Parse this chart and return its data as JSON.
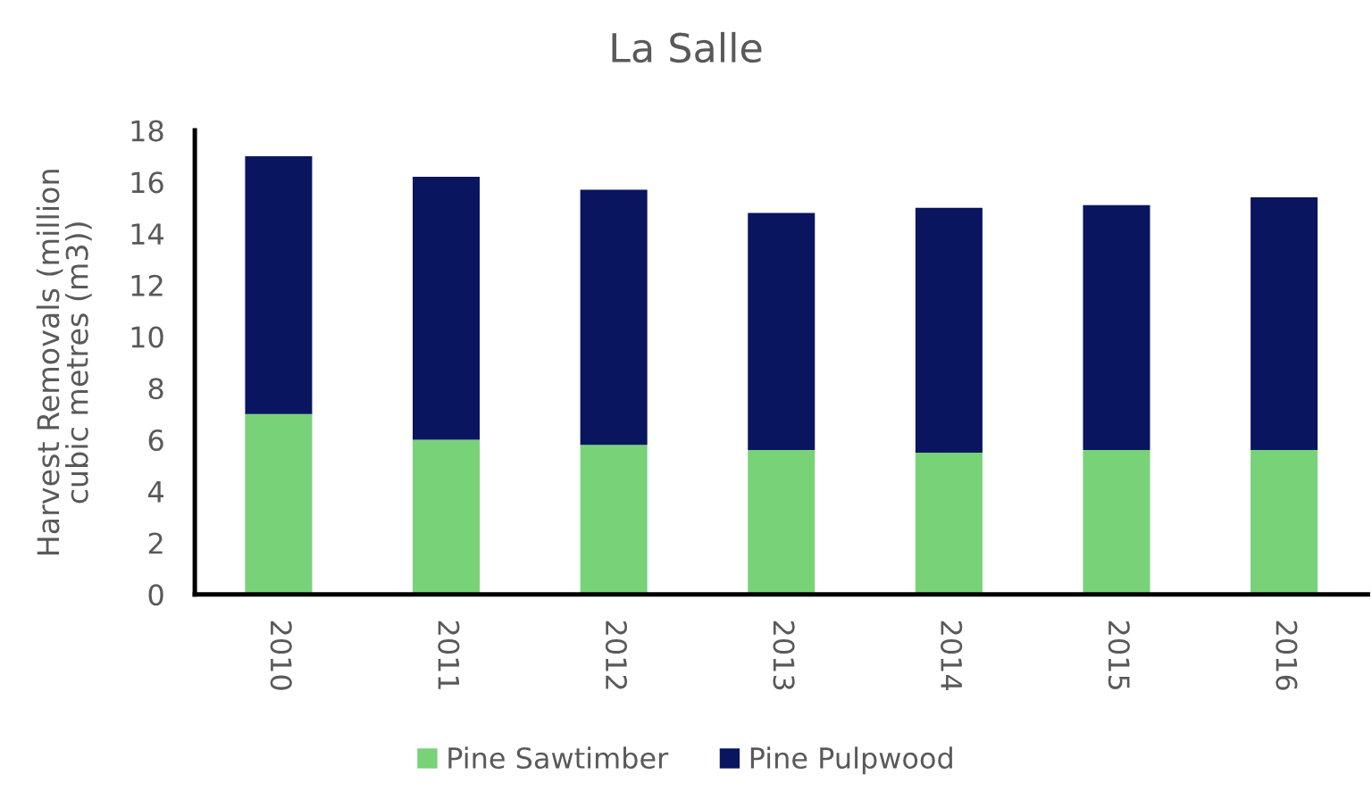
{
  "chart_data": {
    "type": "bar",
    "title": "La Salle",
    "ylabel": "Harvest Removals (million\ncubic metres (m3))",
    "categories": [
      "2010",
      "2011",
      "2012",
      "2013",
      "2014",
      "2015",
      "2016"
    ],
    "series": [
      {
        "name": "Pine Sawtimber",
        "color": "#78d278",
        "values": [
          7.0,
          6.0,
          5.8,
          5.6,
          5.5,
          5.6,
          5.6
        ]
      },
      {
        "name": "Pine Pulpwood",
        "color": "#0a1560",
        "values": [
          10.0,
          10.2,
          9.9,
          9.2,
          9.5,
          9.5,
          9.8
        ]
      }
    ],
    "stacked": true,
    "ylim": [
      0,
      18
    ],
    "yticks": [
      0,
      2,
      4,
      6,
      8,
      10,
      12,
      14,
      16,
      18
    ],
    "grid": false,
    "legend": "bottom"
  }
}
